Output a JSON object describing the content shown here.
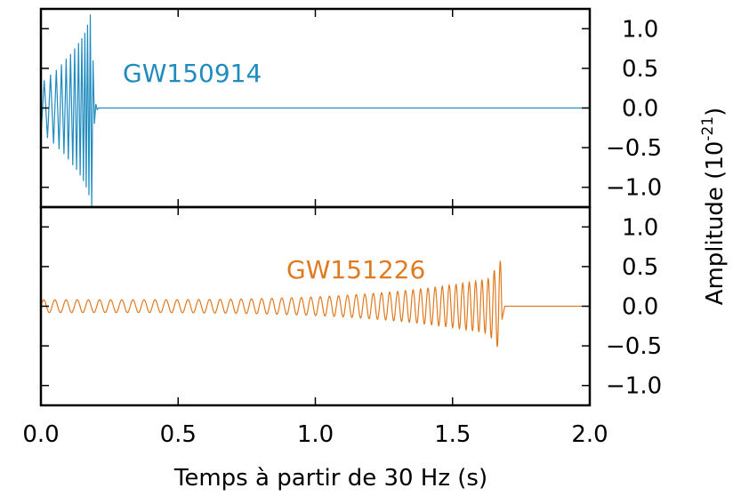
{
  "chart_data": [
    {
      "type": "line",
      "panel": "top",
      "series": [
        {
          "name": "GW150914",
          "color": "#1f8bbf",
          "points": [
            [
              0.0,
              -0.35
            ],
            [
              0.012,
              0.35
            ],
            [
              0.024,
              -0.38
            ],
            [
              0.035,
              0.42
            ],
            [
              0.046,
              -0.45
            ],
            [
              0.056,
              0.48
            ],
            [
              0.066,
              -0.52
            ],
            [
              0.075,
              0.55
            ],
            [
              0.084,
              -0.58
            ],
            [
              0.092,
              0.62
            ],
            [
              0.1,
              -0.65
            ],
            [
              0.108,
              0.68
            ],
            [
              0.116,
              -0.72
            ],
            [
              0.123,
              0.75
            ],
            [
              0.13,
              -0.78
            ],
            [
              0.137,
              0.82
            ],
            [
              0.143,
              -0.85
            ],
            [
              0.149,
              0.88
            ],
            [
              0.155,
              -0.92
            ],
            [
              0.16,
              0.95
            ],
            [
              0.165,
              -1.0
            ],
            [
              0.17,
              1.05
            ],
            [
              0.175,
              -1.1
            ],
            [
              0.18,
              1.18
            ],
            [
              0.185,
              -1.25
            ],
            [
              0.19,
              0.6
            ],
            [
              0.195,
              -0.2
            ],
            [
              0.2,
              0.05
            ],
            [
              0.205,
              -0.02
            ],
            [
              0.21,
              0.0
            ],
            [
              2.0,
              0.0
            ]
          ]
        }
      ],
      "ylim": [
        -1.25,
        1.25
      ],
      "xlim": [
        0.0,
        2.0
      ],
      "yticks": [
        "1.0",
        "0.5",
        "0.0",
        "−0.5",
        "−1.0"
      ],
      "ytick_values": [
        1.0,
        0.5,
        0.0,
        -0.5,
        -1.0
      ],
      "label": "GW150914"
    },
    {
      "type": "line",
      "panel": "bottom",
      "series": [
        {
          "name": "GW151226",
          "color": "#e07a1f",
          "chirp": {
            "t_start": 0.0,
            "t_merge": 1.68,
            "amp_start": 0.08,
            "amp_end": 0.38,
            "cycles": 55
          }
        }
      ],
      "ylim": [
        -1.25,
        1.25
      ],
      "xlim": [
        0.0,
        2.0
      ],
      "yticks": [
        "1.0",
        "0.5",
        "0.0",
        "−0.5",
        "−1.0"
      ],
      "ytick_values": [
        1.0,
        0.5,
        0.0,
        -0.5,
        -1.0
      ],
      "label": "GW151226"
    }
  ],
  "xaxis": {
    "ticks": [
      "0.0",
      "0.5",
      "1.0",
      "1.5",
      "2.0"
    ],
    "tick_values": [
      0.0,
      0.5,
      1.0,
      1.5,
      2.0
    ],
    "label": "Temps à partir de 30 Hz (s)"
  },
  "yaxis": {
    "label": "Amplitude (10",
    "label_exp": "-21",
    "label_end": ")"
  }
}
